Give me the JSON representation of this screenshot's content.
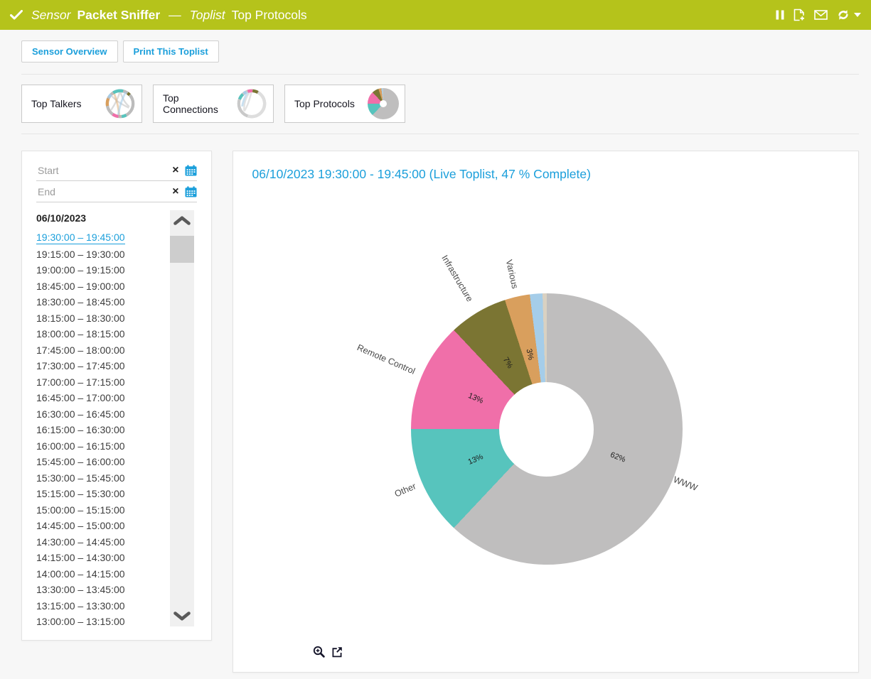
{
  "colors": {
    "header_bg": "#b5c31b",
    "accent_blue": "#1b9fdb"
  },
  "header": {
    "sensor_label": "Sensor",
    "sensor_name": "Packet Sniffer",
    "dash": "—",
    "toplist_label": "Toplist",
    "toplist_name": "Top Protocols"
  },
  "toolbar": {
    "sensor_overview": "Sensor Overview",
    "print_toplist": "Print This Toplist"
  },
  "tabs": [
    {
      "label": "Top Talkers"
    },
    {
      "label": "Top Connections"
    },
    {
      "label": "Top Protocols"
    }
  ],
  "sidebar": {
    "start_placeholder": "Start",
    "end_placeholder": "End",
    "date_header": "06/10/2023",
    "selected_index": 0,
    "time_ranges": [
      "19:30:00 – 19:45:00",
      "19:15:00 – 19:30:00",
      "19:00:00 – 19:15:00",
      "18:45:00 – 19:00:00",
      "18:30:00 – 18:45:00",
      "18:15:00 – 18:30:00",
      "18:00:00 – 18:15:00",
      "17:45:00 – 18:00:00",
      "17:30:00 – 17:45:00",
      "17:00:00 – 17:15:00",
      "16:45:00 – 17:00:00",
      "16:30:00 – 16:45:00",
      "16:15:00 – 16:30:00",
      "16:00:00 – 16:15:00",
      "15:45:00 – 16:00:00",
      "15:30:00 – 15:45:00",
      "15:15:00 – 15:30:00",
      "15:00:00 – 15:15:00",
      "14:45:00 – 15:00:00",
      "14:30:00 – 14:45:00",
      "14:15:00 – 14:30:00",
      "14:00:00 – 14:15:00",
      "13:30:00 – 13:45:00",
      "13:15:00 – 13:30:00",
      "13:00:00 – 13:15:00"
    ]
  },
  "main": {
    "title": "06/10/2023 19:30:00 - 19:45:00 (Live Toplist, 47 % Complete)"
  },
  "chart_data": {
    "type": "pie",
    "subtype": "donut",
    "title": "06/10/2023 19:30:00 - 19:45:00 (Live Toplist, 47 % Complete)",
    "start_angle_deg": 0,
    "direction": "clockwise",
    "inner_radius_ratio": 0.35,
    "legend_position": "radial-labels",
    "segments": [
      {
        "label": "WWW",
        "percent": 62,
        "color": "#bfbebe"
      },
      {
        "label": "Other",
        "percent": 13,
        "color": "#57c4bd"
      },
      {
        "label": "Remote Control",
        "percent": 13,
        "color": "#f06fa9"
      },
      {
        "label": "Infrastructure",
        "percent": 7,
        "color": "#7b7533"
      },
      {
        "label": "Various",
        "percent": 3,
        "color": "#d99f5d"
      },
      {
        "label": "",
        "percent": 1.5,
        "color": "#a5cde9"
      },
      {
        "label": "",
        "percent": 0.5,
        "color": "#d9d1c2"
      }
    ]
  },
  "icons": {
    "check_icon": "checkmark",
    "pause_icon": "two vertical bars",
    "report_icon": "document with plus",
    "email_icon": "envelope",
    "refresh_icon": "circular arrows",
    "caret_down_icon": "small triangle",
    "calendar_icon": "blue calendar grid",
    "clear_icon": "×",
    "scroll_up_icon": "chevron up",
    "scroll_down_icon": "chevron down",
    "zoom_in_icon": "magnifier with plus",
    "open_new_window_icon": "box with outward arrow"
  }
}
